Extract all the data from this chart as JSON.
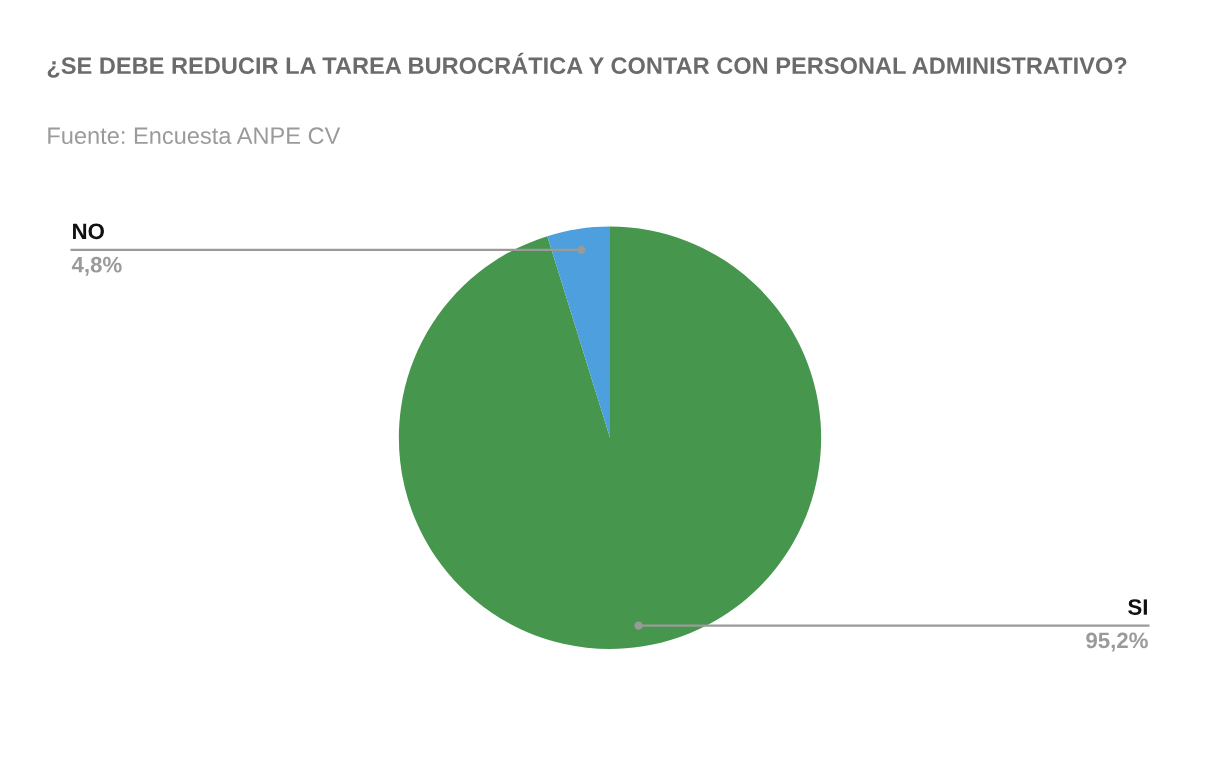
{
  "chart_data": {
    "type": "pie",
    "title": "¿SE DEBE REDUCIR LA TAREA BUROCRÁTICA Y CONTAR CON PERSONAL ADMINISTRATIVO?",
    "subtitle": "Fuente: Encuesta ANPE CV",
    "categories": [
      "SI",
      "NO"
    ],
    "values": [
      95.2,
      4.8
    ],
    "colors": [
      "#46964e",
      "#4e9fdd"
    ],
    "value_labels": [
      "95,2%",
      "4,8%"
    ],
    "legend": false
  }
}
